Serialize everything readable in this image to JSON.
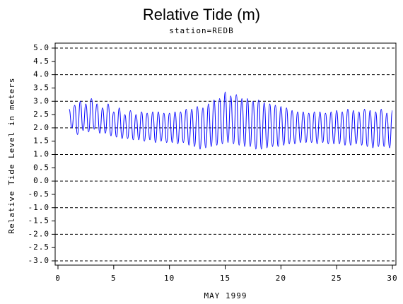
{
  "chart_data": {
    "type": "line",
    "title": "Relative Tide (m)",
    "subtitle": "station=REDB",
    "x_label": "MAY 1999",
    "y_label": "Relative Tide Level in meters",
    "color": "#0000ff",
    "xlim": [
      0,
      30
    ],
    "xticks": [
      0,
      5,
      10,
      15,
      20,
      25,
      30
    ],
    "ylim": [
      -3,
      5
    ],
    "yticks": [
      {
        "value": 5,
        "label": "5.0"
      },
      4.5,
      {
        "value": 4,
        "label": "4.0"
      },
      3.5,
      {
        "value": 3,
        "label": "3.0"
      },
      2.5,
      {
        "value": 2,
        "label": "2.0"
      },
      1.5,
      {
        "value": 1,
        "label": "1.0"
      },
      0.5,
      {
        "value": 0,
        "label": "0.0"
      },
      -0.5,
      {
        "value": -1,
        "label": "-1.0"
      },
      -1.5,
      {
        "value": -2,
        "label": "-2.0"
      },
      -2.5,
      {
        "value": -3,
        "label": "-3.0"
      }
    ],
    "grid": true,
    "x": [
      1,
      1.25,
      1.5,
      1.75,
      2,
      2.25,
      2.5,
      2.75,
      3,
      3.25,
      3.5,
      3.75,
      4,
      4.25,
      4.5,
      4.75,
      5,
      5.25,
      5.5,
      5.75,
      6,
      6.25,
      6.5,
      6.75,
      7,
      7.25,
      7.5,
      7.75,
      8,
      8.25,
      8.5,
      8.75,
      9,
      9.25,
      9.5,
      9.75,
      10,
      10.25,
      10.5,
      10.75,
      11,
      11.25,
      11.5,
      11.75,
      12,
      12.25,
      12.5,
      12.75,
      13,
      13.25,
      13.5,
      13.75,
      14,
      14.25,
      14.5,
      14.75,
      15,
      15.25,
      15.5,
      15.75,
      16,
      16.25,
      16.5,
      16.75,
      17,
      17.25,
      17.5,
      17.75,
      18,
      18.25,
      18.5,
      18.75,
      19,
      19.25,
      19.5,
      19.75,
      20,
      20.25,
      20.5,
      20.75,
      21,
      21.25,
      21.5,
      21.75,
      22,
      22.25,
      22.5,
      22.75,
      23,
      23.25,
      23.5,
      23.75,
      24,
      24.25,
      24.5,
      24.75,
      25,
      25.25,
      25.5,
      25.75,
      26,
      26.25,
      26.5,
      26.75,
      27,
      27.25,
      27.5,
      27.75,
      28,
      28.25,
      28.5,
      28.75,
      29,
      29.25,
      29.5,
      29.75,
      30
    ],
    "values": [
      2.7,
      2.0,
      2.85,
      1.75,
      3.0,
      1.9,
      2.9,
      1.85,
      3.1,
      1.95,
      2.9,
      1.8,
      2.75,
      1.8,
      2.9,
      1.7,
      2.6,
      1.65,
      2.75,
      1.6,
      2.5,
      1.6,
      2.65,
      1.55,
      2.5,
      1.55,
      2.6,
      1.5,
      2.55,
      1.55,
      2.6,
      1.45,
      2.6,
      1.5,
      2.55,
      1.45,
      2.55,
      1.45,
      2.6,
      1.4,
      2.6,
      1.45,
      2.7,
      1.35,
      2.7,
      1.3,
      2.8,
      1.2,
      2.75,
      1.25,
      2.9,
      1.3,
      3.05,
      1.35,
      3.1,
      1.4,
      3.35,
      1.45,
      3.2,
      1.4,
      3.25,
      1.35,
      3.1,
      1.3,
      3.1,
      1.3,
      3.0,
      1.2,
      3.05,
      1.2,
      2.95,
      1.25,
      2.9,
      1.3,
      2.85,
      1.3,
      2.8,
      1.35,
      2.75,
      1.4,
      2.65,
      1.4,
      2.6,
      1.45,
      2.6,
      1.45,
      2.55,
      1.45,
      2.6,
      1.4,
      2.6,
      1.45,
      2.55,
      1.4,
      2.6,
      1.4,
      2.65,
      1.4,
      2.6,
      1.35,
      2.7,
      1.35,
      2.65,
      1.4,
      2.6,
      1.35,
      2.7,
      1.3,
      2.65,
      1.25,
      2.6,
      1.3,
      2.7,
      1.3,
      2.55,
      1.25,
      2.65
    ]
  }
}
